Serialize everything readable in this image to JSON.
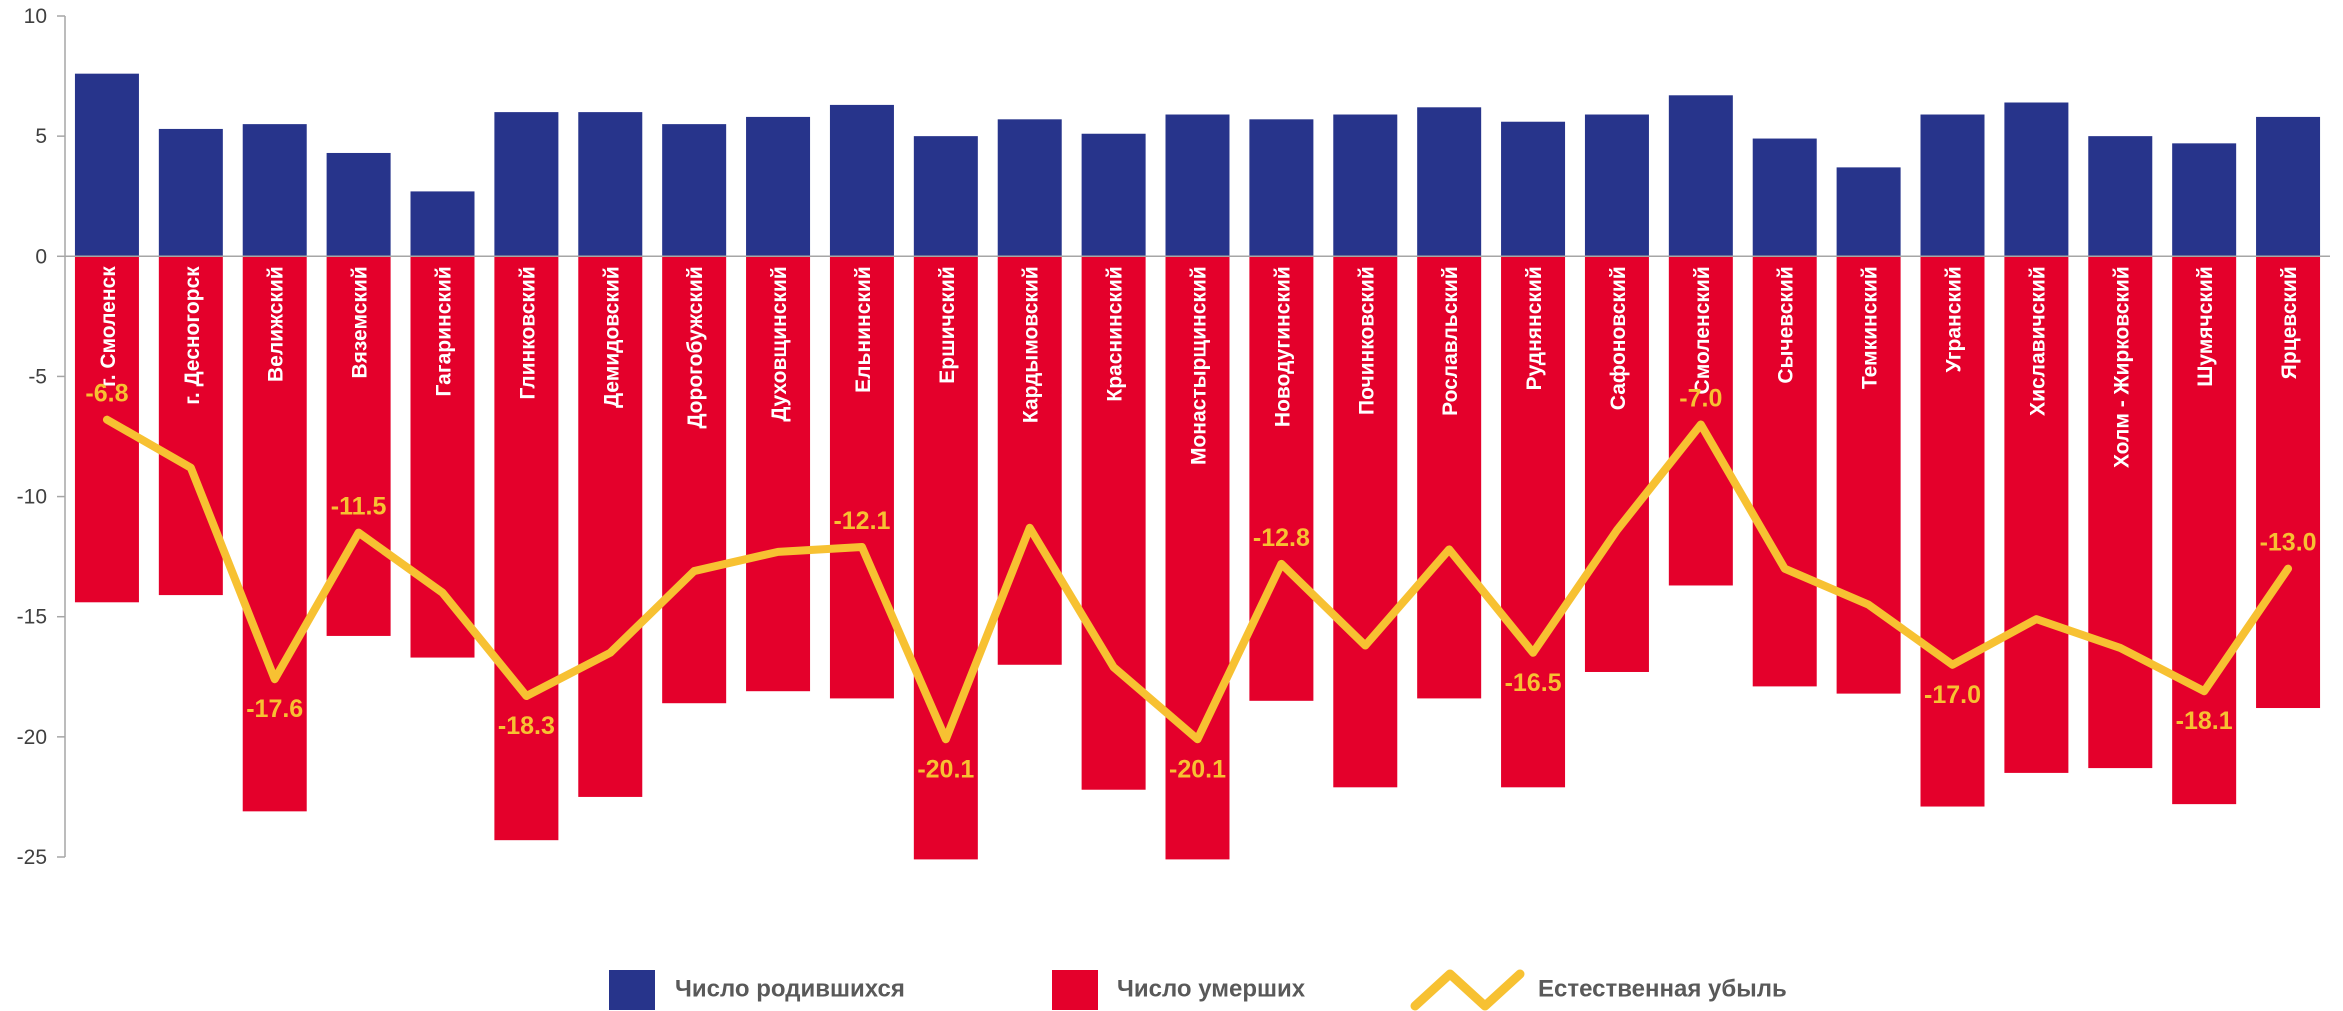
{
  "chart_data": {
    "type": "bar",
    "categories": [
      "г. Смоленск",
      "г. Десногорск",
      "Велижский",
      "Вяземский",
      "Гагаринский",
      "Глинковский",
      "Демидовский",
      "Дорогобужский",
      "Духовщинский",
      "Ельнинский",
      "Ершичский",
      "Кардымовский",
      "Краснинский",
      "Монастырщинский",
      "Новодугинский",
      "Починковский",
      "Рославльский",
      "Руднянский",
      "Сафоновский",
      "Смоленский",
      "Сычевский",
      "Темкинский",
      "Угранский",
      "Хиславичский",
      "Холм - Жирковский",
      "Шумячский",
      "Ярцевский"
    ],
    "series": [
      {
        "name": "Число родившихся",
        "type": "bar",
        "color": "#27348b",
        "values": [
          7.6,
          5.3,
          5.5,
          4.3,
          2.7,
          6.0,
          6.0,
          5.5,
          5.8,
          6.3,
          5.0,
          5.7,
          5.1,
          5.9,
          5.7,
          5.9,
          6.2,
          5.6,
          5.9,
          6.7,
          4.9,
          3.7,
          5.9,
          6.4,
          5.0,
          4.7,
          5.8
        ]
      },
      {
        "name": "Число умерших",
        "type": "bar",
        "color": "#e4002b",
        "values": [
          -14.4,
          -14.1,
          -23.1,
          -15.8,
          -16.7,
          -24.3,
          -22.5,
          -18.6,
          -18.1,
          -18.4,
          -25.1,
          -17.0,
          -22.2,
          -25.1,
          -18.5,
          -22.1,
          -18.4,
          -22.1,
          -17.3,
          -13.7,
          -17.9,
          -18.2,
          -22.9,
          -21.5,
          -21.3,
          -22.8,
          -18.8
        ]
      },
      {
        "name": "Естественная убыль",
        "type": "line",
        "color": "#f7c132",
        "values": [
          -6.8,
          -8.8,
          -17.6,
          -11.5,
          -14.0,
          -18.3,
          -16.5,
          -13.1,
          -12.3,
          -12.1,
          -20.1,
          -11.3,
          -17.1,
          -20.1,
          -12.8,
          -16.2,
          -12.2,
          -16.5,
          -11.4,
          -7.0,
          -13.0,
          -14.5,
          -17.0,
          -15.1,
          -16.3,
          -18.1,
          -13.0
        ],
        "labels": [
          "-6.8",
          "",
          "-17.6",
          "-11.5",
          "",
          "-18.3",
          "",
          "",
          "",
          "-12.1",
          "-20.1",
          "",
          "",
          "-20.1",
          "-12.8",
          "",
          "",
          "-16.5",
          "",
          "-7.0",
          "",
          "",
          "-17.0",
          "",
          "",
          "-18.1",
          "-13.0"
        ]
      }
    ],
    "yticks": [
      "10",
      "5",
      "0",
      "-5",
      "-10",
      "-15",
      "-20",
      "-25"
    ],
    "ylim": [
      -25,
      10
    ],
    "legend_position": "bottom",
    "grid": false
  }
}
